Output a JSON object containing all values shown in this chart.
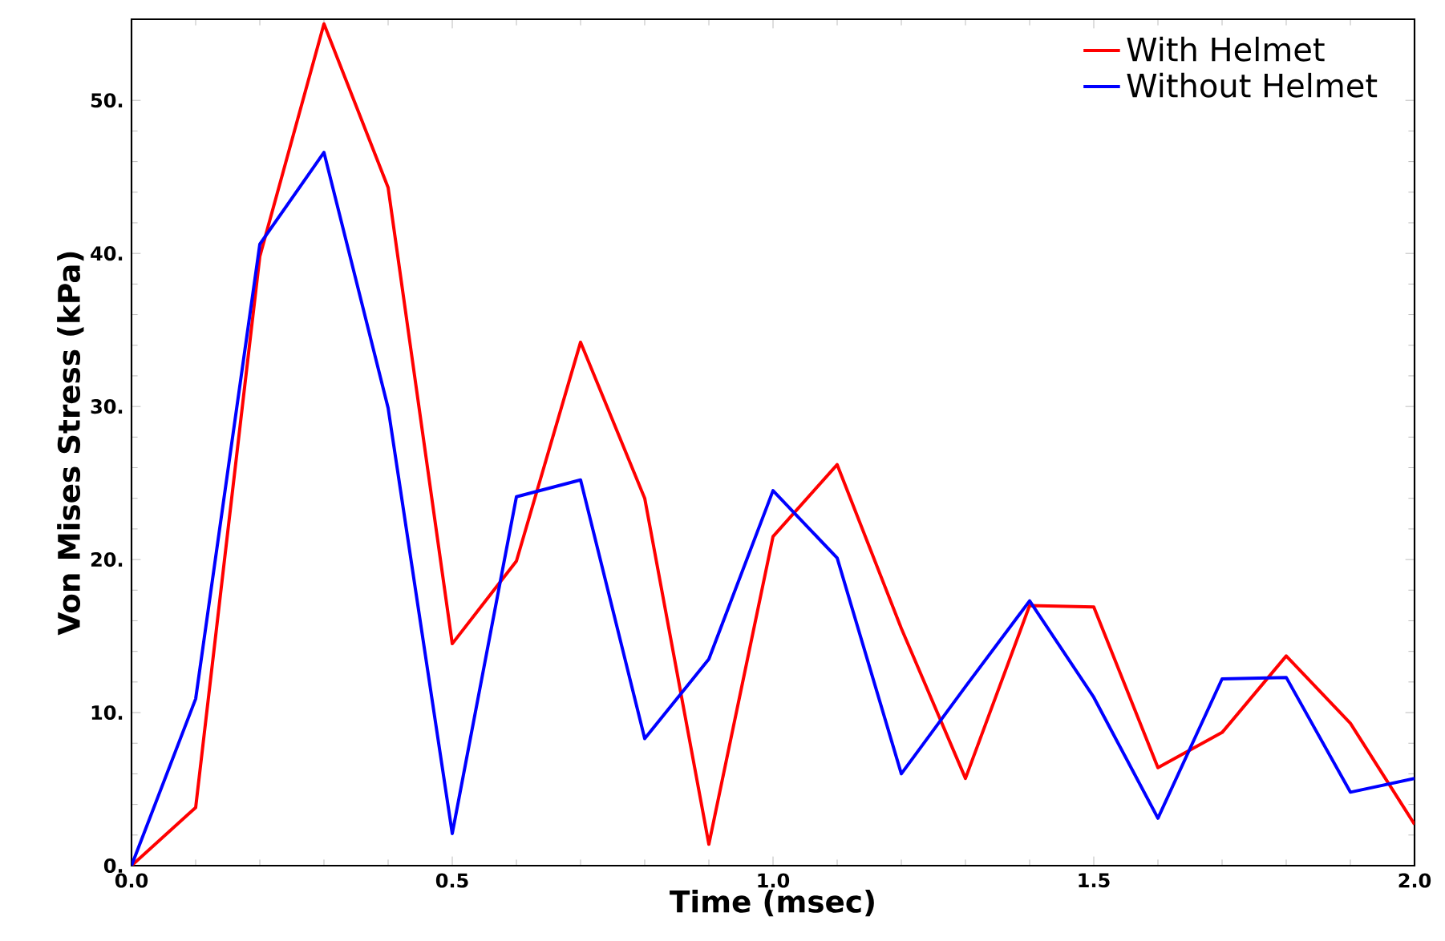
{
  "chart_data": {
    "type": "line",
    "xlabel": "Time (msec)",
    "ylabel": "Von Mises Stress (kPa)",
    "xlim": [
      0,
      2.0
    ],
    "ylim": [
      0,
      55.3
    ],
    "xticks": [
      {
        "value": 0,
        "label": "0.0"
      },
      {
        "value": 0.5,
        "label": "0.5"
      },
      {
        "value": 1.0,
        "label": "1.0"
      },
      {
        "value": 1.5,
        "label": "1.5"
      },
      {
        "value": 2.0,
        "label": "2.0"
      }
    ],
    "yticks": [
      {
        "value": 0,
        "label": "0."
      },
      {
        "value": 10,
        "label": "10."
      },
      {
        "value": 20,
        "label": "20."
      },
      {
        "value": 30,
        "label": "30."
      },
      {
        "value": 40,
        "label": "40."
      },
      {
        "value": 50,
        "label": "50."
      }
    ],
    "x": [
      0,
      0.1,
      0.2,
      0.3,
      0.4,
      0.5,
      0.6,
      0.7,
      0.8,
      0.9,
      1.0,
      1.1,
      1.2,
      1.3,
      1.4,
      1.5,
      1.6,
      1.7,
      1.8,
      1.9,
      2.0
    ],
    "series": [
      {
        "name": "With Helmet",
        "color": "#ff0000",
        "values": [
          0,
          3.8,
          39.8,
          55.0,
          44.3,
          14.5,
          19.9,
          34.2,
          24.0,
          1.4,
          21.5,
          26.2,
          15.5,
          5.7,
          17.0,
          16.9,
          6.4,
          8.7,
          13.7,
          9.3,
          2.7
        ]
      },
      {
        "name": "Without Helmet",
        "color": "#0000ff",
        "values": [
          0,
          10.9,
          40.6,
          46.6,
          29.9,
          2.1,
          24.1,
          25.2,
          8.3,
          13.5,
          24.5,
          20.1,
          6.0,
          11.7,
          17.3,
          11.0,
          3.1,
          12.2,
          12.3,
          4.8,
          5.7
        ]
      }
    ],
    "legend": "top right",
    "grid": false,
    "marker": "none",
    "line_style": "solid"
  }
}
